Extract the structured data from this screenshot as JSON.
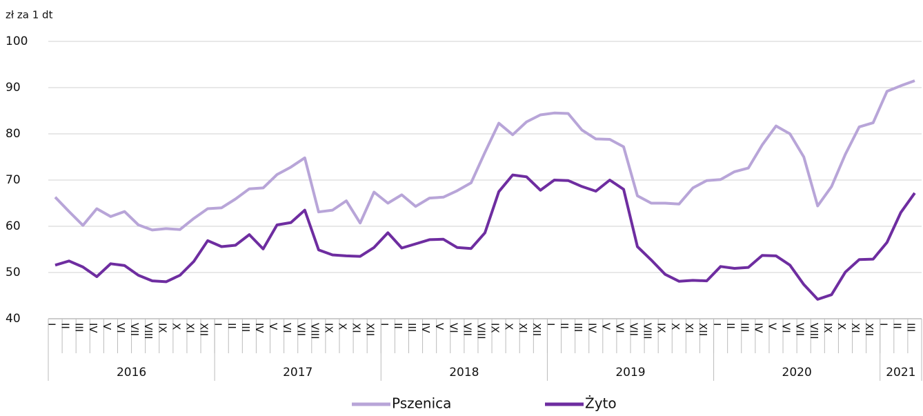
{
  "chart_data": {
    "type": "line",
    "y_label": "zł za 1 dt",
    "categories": [
      "I",
      "II",
      "III",
      "IV",
      "V",
      "VI",
      "VII",
      "VIII",
      "IX",
      "X",
      "XI",
      "XII",
      "I",
      "II",
      "III",
      "IV",
      "V",
      "VI",
      "VII",
      "VIII",
      "IX",
      "X",
      "XI",
      "XII",
      "I",
      "II",
      "III",
      "IV",
      "V",
      "VI",
      "VII",
      "VIII",
      "IX",
      "X",
      "XI",
      "XII",
      "I",
      "II",
      "III",
      "IV",
      "V",
      "VI",
      "VII",
      "VIII",
      "IX",
      "X",
      "XI",
      "XII",
      "I",
      "II",
      "III",
      "IV",
      "V",
      "VI",
      "VII",
      "VIII",
      "IX",
      "X",
      "XI",
      "XII",
      "I",
      "II",
      "III"
    ],
    "years": [
      "2016",
      "2017",
      "2018",
      "2019",
      "2020",
      "2021"
    ],
    "series": [
      {
        "name": "Pszenica",
        "color": "#b8a5d8",
        "values": [
          66.3,
          63.2,
          60.2,
          63.8,
          62.1,
          63.2,
          60.3,
          59.2,
          59.5,
          59.3,
          61.7,
          63.8,
          64.0,
          65.9,
          68.1,
          68.3,
          71.2,
          72.8,
          74.8,
          63.1,
          63.5,
          65.5,
          60.7,
          67.4,
          65.0,
          66.8,
          64.3,
          66.1,
          66.3,
          67.7,
          69.4,
          76.0,
          82.3,
          79.8,
          82.6,
          84.1,
          84.5,
          84.4,
          80.8,
          78.9,
          78.8,
          77.2,
          66.6,
          65.0,
          65.0,
          64.8,
          68.3,
          69.9,
          70.1,
          71.8,
          72.6,
          77.6,
          81.7,
          80.0,
          75.0,
          64.4,
          68.6,
          75.6,
          81.5,
          82.4,
          89.2,
          90.4,
          91.5
        ]
      },
      {
        "name": "Żyto",
        "color": "#6e2da0",
        "values": [
          51.6,
          52.5,
          51.2,
          49.1,
          51.9,
          51.5,
          49.4,
          48.2,
          48.0,
          49.4,
          52.4,
          56.9,
          55.6,
          55.9,
          58.2,
          55.1,
          60.3,
          60.8,
          63.5,
          54.9,
          53.8,
          53.6,
          53.5,
          55.4,
          58.6,
          55.3,
          56.2,
          57.1,
          57.2,
          55.4,
          55.2,
          58.6,
          67.5,
          71.1,
          70.7,
          67.8,
          70.0,
          69.9,
          68.6,
          67.6,
          70.0,
          68.0,
          55.6,
          52.7,
          49.6,
          48.1,
          48.3,
          48.2,
          51.3,
          50.9,
          51.1,
          53.7,
          53.6,
          51.6,
          47.4,
          44.2,
          45.2,
          50.1,
          52.8,
          52.9,
          56.5,
          63.0,
          67.2
        ]
      }
    ],
    "ylim": [
      40,
      100
    ],
    "yticks": [
      40,
      50,
      60,
      70,
      80,
      90,
      100
    ],
    "grid": true,
    "legend": "bottom"
  }
}
